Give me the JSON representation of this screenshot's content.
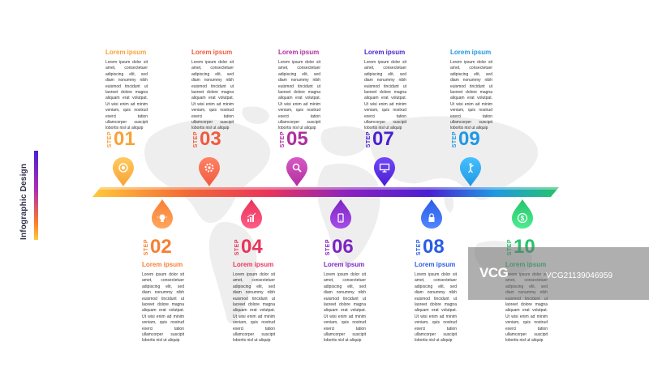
{
  "sidebar": {
    "title": "Infographic Design"
  },
  "steps": [
    {
      "step_word": "STEP",
      "number": "01",
      "title": "Lorem ipsum",
      "icon": "target-icon",
      "color": "#f8a236",
      "position": "top",
      "body": "Lorem ipsum dolor sit amet, consectetuer adipiscing elit, sed diam nonummy nibh euismod tincidunt ut laoreet dolore magna aliquam erat volutpat. Ut wisi enim ad minim veniam, quis nostrud exerci tation ullamcorper suscipit lobortis nisl ut aliquip"
    },
    {
      "step_word": "STEP",
      "number": "02",
      "title": "Lorem ipsum",
      "icon": "lightbulb-icon",
      "color": "#f67f35",
      "position": "bottom",
      "body": "Lorem ipsum dolor sit amet, consectetuer adipiscing elit, sed diam nonummy nibh euismod tincidunt ut laoreet dolore magna aliquam erat volutpat. Ut wisi enim ad minim veniam, quis nostrud exerci tation ullamcorper suscipit lobortis nisl ut aliquip"
    },
    {
      "step_word": "STEP",
      "number": "03",
      "title": "Lorem ipsum",
      "icon": "gear-icon",
      "color": "#f05a3e",
      "position": "top",
      "body": "Lorem ipsum dolor sit amet, consectetuer adipiscing elit, sed diam nonummy nibh euismod tincidunt ut laoreet dolore magna aliquam erat volutpat. Ut wisi enim ad minim veniam, quis nostrud exerci tation ullamcorper suscipit lobortis nisl ut aliquip"
    },
    {
      "step_word": "STEP",
      "number": "04",
      "title": "Lorem ipsum",
      "icon": "chart-icon",
      "color": "#e8345c",
      "position": "bottom",
      "body": "Lorem ipsum dolor sit amet, consectetuer adipiscing elit, sed diam nonummy nibh euismod tincidunt ut laoreet dolore magna aliquam erat volutpat. Ut wisi enim ad minim veniam, quis nostrud exerci tation ullamcorper suscipit lobortis nisl ut aliquip"
    },
    {
      "step_word": "STEP",
      "number": "05",
      "title": "Lorem ipsum",
      "icon": "search-icon",
      "color": "#b0309d",
      "position": "top",
      "body": "Lorem ipsum dolor sit amet, consectetuer adipiscing elit, sed diam nonummy nibh euismod tincidunt ut laoreet dolore magna aliquam erat volutpat. Ut wisi enim ad minim veniam, quis nostrud exerci tation ullamcorper suscipit lobortis nisl ut aliquip"
    },
    {
      "step_word": "STEP",
      "number": "06",
      "title": "Lorem ipsum",
      "icon": "phone-icon",
      "color": "#7d24c2",
      "position": "bottom",
      "body": "Lorem ipsum dolor sit amet, consectetuer adipiscing elit, sed diam nonummy nibh euismod tincidunt ut laoreet dolore magna aliquam erat volutpat. Ut wisi enim ad minim veniam, quis nostrud exerci tation ullamcorper suscipit lobortis nisl ut aliquip"
    },
    {
      "step_word": "STEP",
      "number": "07",
      "title": "Lorem ipsum",
      "icon": "monitor-icon",
      "color": "#4a1fd1",
      "position": "top",
      "body": "Lorem ipsum dolor sit amet, consectetuer adipiscing elit, sed diam nonummy nibh euismod tincidunt ut laoreet dolore magna aliquam erat volutpat. Ut wisi enim ad minim veniam, quis nostrud exerci tation ullamcorper suscipit lobortis nisl ut aliquip"
    },
    {
      "step_word": "STEP",
      "number": "08",
      "title": "Lorem ipsum",
      "icon": "lock-icon",
      "color": "#2a5de6",
      "position": "bottom",
      "body": "Lorem ipsum dolor sit amet, consectetuer adipiscing elit, sed diam nonummy nibh euismod tincidunt ut laoreet dolore magna aliquam erat volutpat. Ut wisi enim ad minim veniam, quis nostrud exerci tation ullamcorper suscipit lobortis nisl ut aliquip"
    },
    {
      "step_word": "STEP",
      "number": "09",
      "title": "Lorem ipsum",
      "icon": "person-icon",
      "color": "#1f98e3",
      "position": "top",
      "body": "Lorem ipsum dolor sit amet, consectetuer adipiscing elit, sed diam nonummy nibh euismod tincidunt ut laoreet dolore magna aliquam erat volutpat. Ut wisi enim ad minim veniam, quis nostrud exerci tation ullamcorper suscipit lobortis nisl ut aliquip"
    },
    {
      "step_word": "STEP",
      "number": "10",
      "title": "Lorem ipsum",
      "icon": "dollar-icon",
      "color": "#25c46a",
      "position": "bottom",
      "body": "Lorem ipsum dolor sit amet, consectetuer adipiscing elit, sed diam nonummy nibh euismod tincidunt ut laoreet dolore magna aliquam erat volutpat. Ut wisi enim ad minim veniam, quis nostrud exerci tation ullamcorper suscipit lobortis nisl ut aliquip"
    }
  ],
  "watermark": {
    "logo": "VCG",
    "code": "VCG21139046959"
  }
}
